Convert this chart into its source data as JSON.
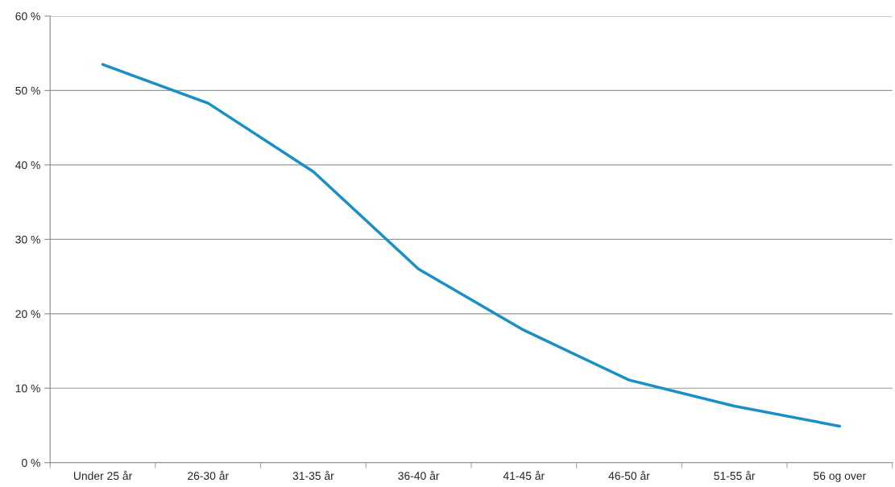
{
  "chart_data": {
    "type": "line",
    "categories": [
      "Under 25 år",
      "26-30 år",
      "31-35 år",
      "36-40 år",
      "41-45 år",
      "46-50 år",
      "51-55 år",
      "56 og over"
    ],
    "series": [
      {
        "color": "#1a8fc6",
        "values": [
          53.5,
          48.3,
          39.1,
          26.0,
          17.8,
          11.1,
          7.6,
          4.9
        ]
      }
    ],
    "ylim": [
      0,
      60
    ],
    "yticks": [
      {
        "value": 0,
        "label": "0 %"
      },
      {
        "value": 10,
        "label": "10 %"
      },
      {
        "value": 20,
        "label": "20 %"
      },
      {
        "value": 30,
        "label": "30 %"
      },
      {
        "value": 40,
        "label": "40 %"
      },
      {
        "value": 50,
        "label": "50 %"
      },
      {
        "value": 60,
        "label": "60 %"
      }
    ],
    "grid": "y",
    "marker": "none",
    "line_style": "solid"
  }
}
